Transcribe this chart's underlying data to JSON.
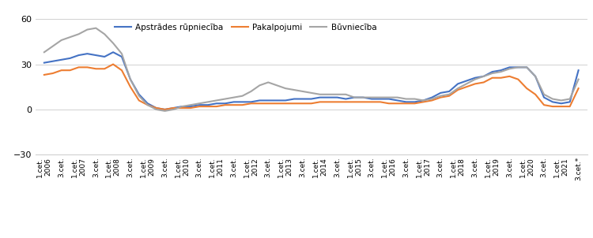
{
  "legend_labels": [
    "Apstrādes rūpniecība",
    "Pakalpojumi",
    "Būvniecība"
  ],
  "colors": [
    "#4472C4",
    "#ED7D31",
    "#A5A5A5"
  ],
  "ylim": [
    -30,
    60
  ],
  "yticks": [
    -30,
    0,
    30,
    60
  ],
  "apstrades": [
    31,
    32,
    33,
    34,
    36,
    37,
    36,
    35,
    38,
    35,
    20,
    10,
    4,
    1,
    0,
    1,
    2,
    2,
    3,
    3,
    4,
    4,
    5,
    5,
    5,
    6,
    6,
    6,
    6,
    7,
    7,
    7,
    8,
    8,
    8,
    7,
    8,
    8,
    7,
    7,
    7,
    6,
    5,
    5,
    6,
    8,
    11,
    12,
    17,
    19,
    21,
    22,
    25,
    26,
    28,
    28,
    28,
    22,
    8,
    5,
    4,
    5,
    26
  ],
  "pakalpojumi": [
    23,
    24,
    26,
    26,
    28,
    28,
    27,
    27,
    30,
    26,
    15,
    6,
    3,
    1,
    0,
    1,
    1,
    1,
    2,
    2,
    2,
    3,
    3,
    3,
    4,
    4,
    4,
    4,
    4,
    4,
    4,
    4,
    5,
    5,
    5,
    5,
    5,
    5,
    5,
    5,
    4,
    4,
    4,
    4,
    5,
    6,
    8,
    9,
    13,
    15,
    17,
    18,
    21,
    21,
    22,
    20,
    14,
    10,
    3,
    2,
    2,
    2,
    14
  ],
  "buvnieciba": [
    38,
    42,
    46,
    48,
    50,
    53,
    54,
    50,
    44,
    37,
    20,
    9,
    3,
    0,
    -1,
    0,
    2,
    3,
    4,
    5,
    6,
    7,
    8,
    9,
    12,
    16,
    18,
    16,
    14,
    13,
    12,
    11,
    10,
    10,
    10,
    10,
    8,
    8,
    8,
    8,
    8,
    8,
    7,
    7,
    6,
    7,
    9,
    10,
    14,
    17,
    20,
    22,
    24,
    25,
    27,
    28,
    28,
    22,
    10,
    7,
    6,
    7,
    20
  ]
}
